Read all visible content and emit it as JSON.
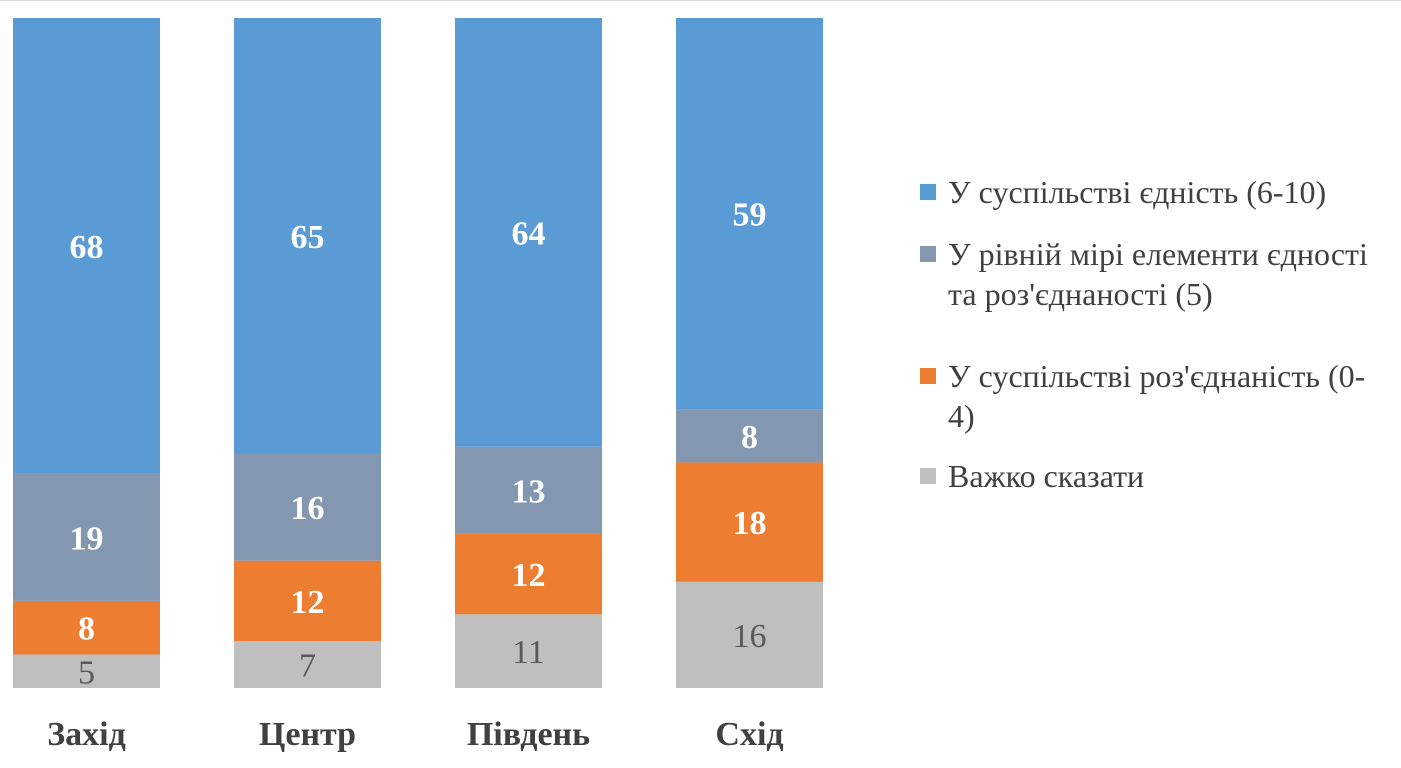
{
  "chart_data": {
    "type": "bar",
    "stacked": true,
    "categories": [
      "Захід",
      "Центр",
      "Південь",
      "Схід"
    ],
    "series": [
      {
        "name": "Важко сказати",
        "values": [
          5,
          7,
          11,
          16
        ],
        "color": "#BFBFBF",
        "label_color": "#595959"
      },
      {
        "name": "У суспільстві роз'єднаність (0-4)",
        "values": [
          8,
          12,
          12,
          18
        ],
        "color": "#ED7D31",
        "label_color": "#FFFFFF"
      },
      {
        "name": "У рівній мірі елементи єдності та роз'єднаності (5)",
        "values": [
          19,
          16,
          13,
          8
        ],
        "color": "#8497B0",
        "label_color": "#FFFFFF"
      },
      {
        "name": "У суспільстві єдність (6-10)",
        "values": [
          68,
          65,
          64,
          59
        ],
        "color": "#5B9BD5",
        "label_color": "#FFFFFF"
      }
    ],
    "legend": {
      "position": "right",
      "items": [
        {
          "label": "У суспільстві єдність (6-10)",
          "color": "#5B9BD5"
        },
        {
          "label": "У рівній мірі елементи єдності та роз'єднаності (5)",
          "color": "#8497B0"
        },
        {
          "label": "У суспільстві роз'єднаність (0-4)",
          "color": "#ED7D31"
        },
        {
          "label": "Важко сказати",
          "color": "#BFBFBF"
        }
      ]
    },
    "ylim": [
      0,
      100
    ],
    "grid": false
  }
}
